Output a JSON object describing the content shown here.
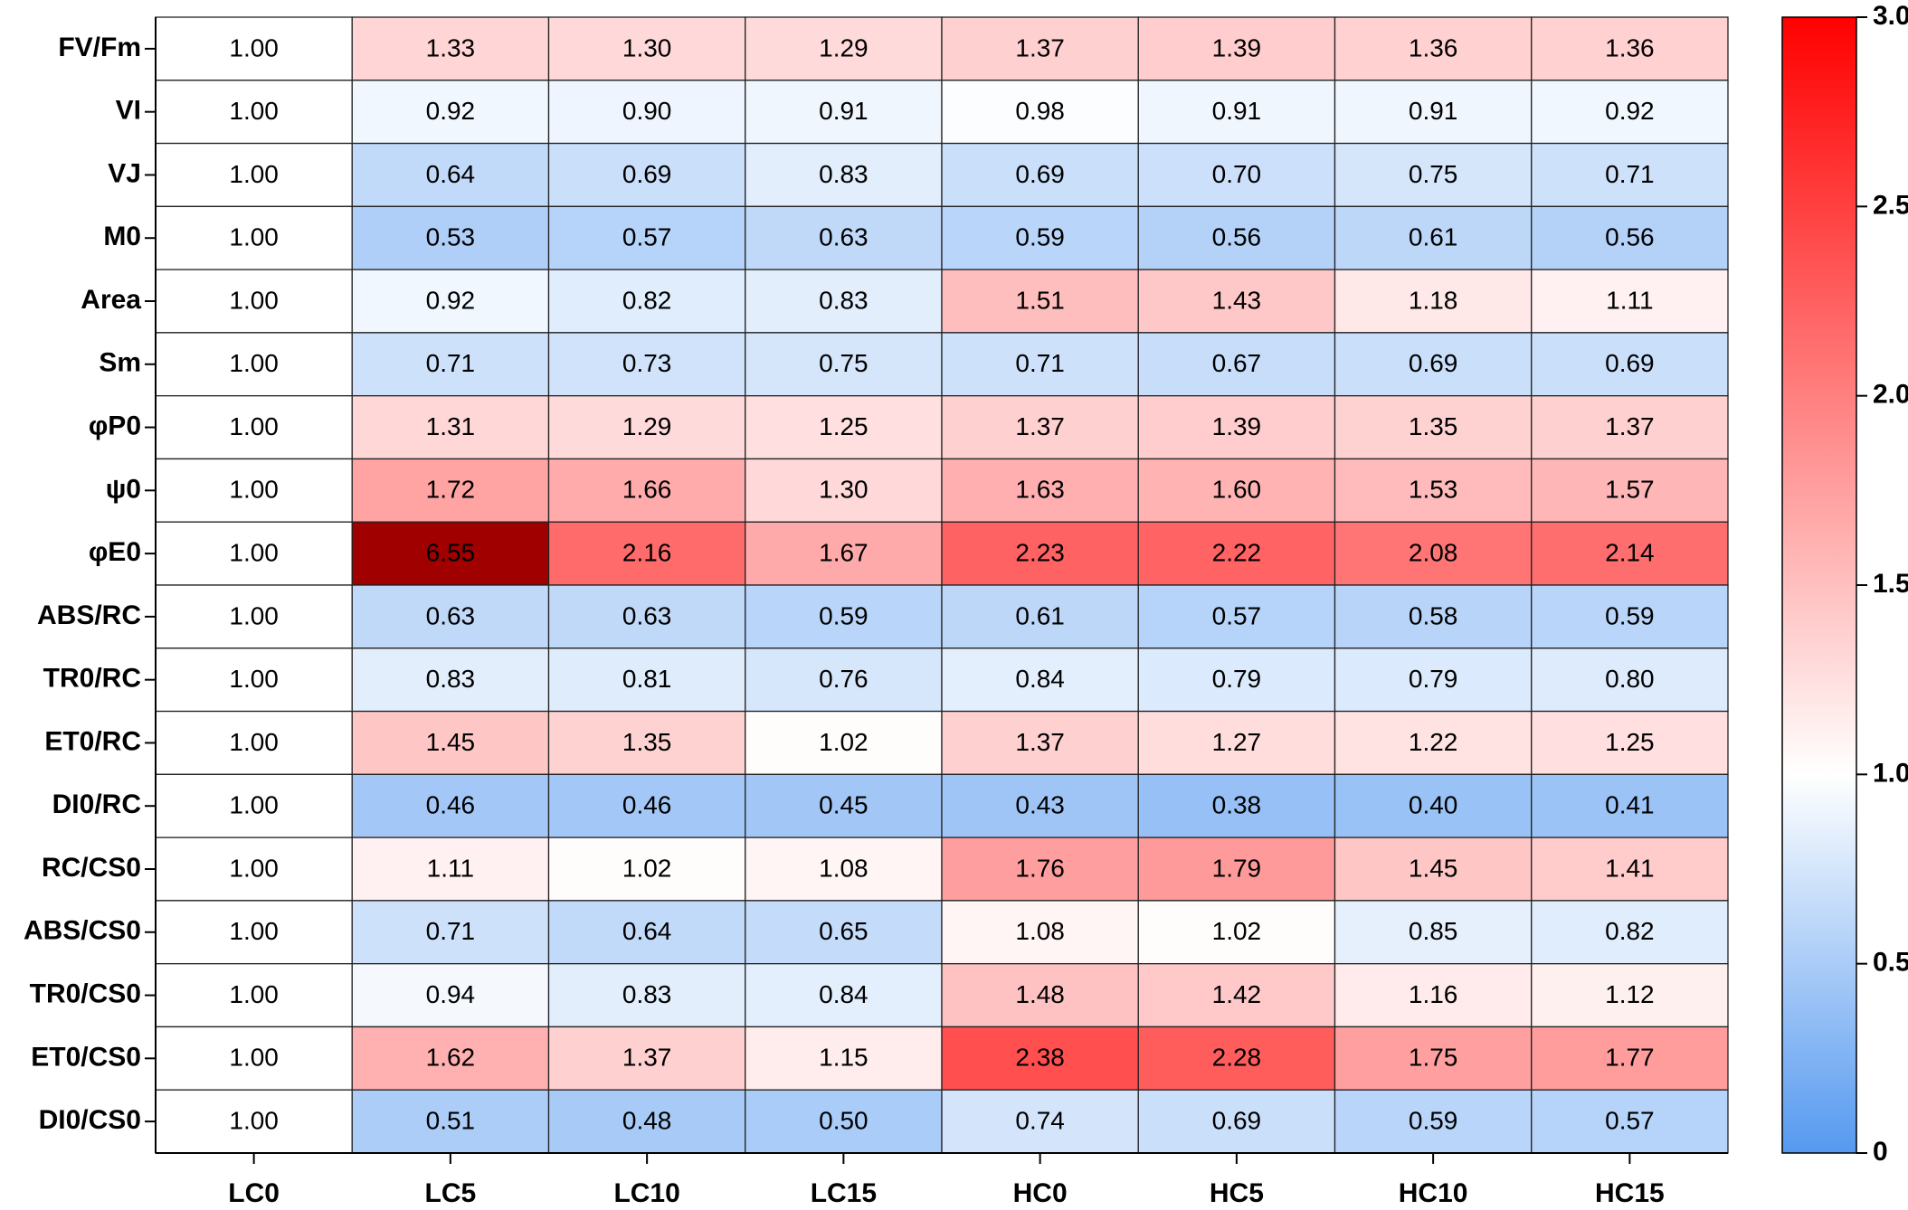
{
  "chart_data": {
    "type": "heatmap",
    "columns": [
      "LC0",
      "LC5",
      "LC10",
      "LC15",
      "HC0",
      "HC5",
      "HC10",
      "HC15"
    ],
    "rows": [
      "FV/Fm",
      "VI",
      "VJ",
      "M0",
      "Area",
      "Sm",
      "φP0",
      "ψ0",
      "φE0",
      "ABS/RC",
      "TR0/RC",
      "ET0/RC",
      "DI0/RC",
      "RC/CS0",
      "ABS/CS0",
      "TR0/CS0",
      "ET0/CS0",
      "DI0/CS0"
    ],
    "values": [
      [
        1.0,
        1.33,
        1.3,
        1.29,
        1.37,
        1.39,
        1.36,
        1.36
      ],
      [
        1.0,
        0.92,
        0.9,
        0.91,
        0.98,
        0.91,
        0.91,
        0.92
      ],
      [
        1.0,
        0.64,
        0.69,
        0.83,
        0.69,
        0.7,
        0.75,
        0.71
      ],
      [
        1.0,
        0.53,
        0.57,
        0.63,
        0.59,
        0.56,
        0.61,
        0.56
      ],
      [
        1.0,
        0.92,
        0.82,
        0.83,
        1.51,
        1.43,
        1.18,
        1.11
      ],
      [
        1.0,
        0.71,
        0.73,
        0.75,
        0.71,
        0.67,
        0.69,
        0.69
      ],
      [
        1.0,
        1.31,
        1.29,
        1.25,
        1.37,
        1.39,
        1.35,
        1.37
      ],
      [
        1.0,
        1.72,
        1.66,
        1.3,
        1.63,
        1.6,
        1.53,
        1.57
      ],
      [
        1.0,
        6.55,
        2.16,
        1.67,
        2.23,
        2.22,
        2.08,
        2.14
      ],
      [
        1.0,
        0.63,
        0.63,
        0.59,
        0.61,
        0.57,
        0.58,
        0.59
      ],
      [
        1.0,
        0.83,
        0.81,
        0.76,
        0.84,
        0.79,
        0.79,
        0.8
      ],
      [
        1.0,
        1.45,
        1.35,
        1.02,
        1.37,
        1.27,
        1.22,
        1.25
      ],
      [
        1.0,
        0.46,
        0.46,
        0.45,
        0.43,
        0.38,
        0.4,
        0.41
      ],
      [
        1.0,
        1.11,
        1.02,
        1.08,
        1.76,
        1.79,
        1.45,
        1.41
      ],
      [
        1.0,
        0.71,
        0.64,
        0.65,
        1.08,
        1.02,
        0.85,
        0.82
      ],
      [
        1.0,
        0.94,
        0.83,
        0.84,
        1.48,
        1.42,
        1.16,
        1.12
      ],
      [
        1.0,
        1.62,
        1.37,
        1.15,
        2.38,
        2.28,
        1.75,
        1.77
      ],
      [
        1.0,
        0.51,
        0.48,
        0.5,
        0.74,
        0.69,
        0.59,
        0.57
      ]
    ],
    "value_labels": [
      [
        "1.00",
        "1.33",
        "1.30",
        "1.29",
        "1.37",
        "1.39",
        "1.36",
        "1.36"
      ],
      [
        "1.00",
        "0.92",
        "0.90",
        "0.91",
        "0.98",
        "0.91",
        "0.91",
        "0.92"
      ],
      [
        "1.00",
        "0.64",
        "0.69",
        "0.83",
        "0.69",
        "0.70",
        "0.75",
        "0.71"
      ],
      [
        "1.00",
        "0.53",
        "0.57",
        "0.63",
        "0.59",
        "0.56",
        "0.61",
        "0.56"
      ],
      [
        "1.00",
        "0.92",
        "0.82",
        "0.83",
        "1.51",
        "1.43",
        "1.18",
        "1.11"
      ],
      [
        "1.00",
        "0.71",
        "0.73",
        "0.75",
        "0.71",
        "0.67",
        "0.69",
        "0.69"
      ],
      [
        "1.00",
        "1.31",
        "1.29",
        "1.25",
        "1.37",
        "1.39",
        "1.35",
        "1.37"
      ],
      [
        "1.00",
        "1.72",
        "1.66",
        "1.30",
        "1.63",
        "1.60",
        "1.53",
        "1.57"
      ],
      [
        "1.00",
        "6.55",
        "2.16",
        "1.67",
        "2.23",
        "2.22",
        "2.08",
        "2.14"
      ],
      [
        "1.00",
        "0.63",
        "0.63",
        "0.59",
        "0.61",
        "0.57",
        "0.58",
        "0.59"
      ],
      [
        "1.00",
        "0.83",
        "0.81",
        "0.76",
        "0.84",
        "0.79",
        "0.79",
        "0.80"
      ],
      [
        "1.00",
        "1.45",
        "1.35",
        "1.02",
        "1.37",
        "1.27",
        "1.22",
        "1.25"
      ],
      [
        "1.00",
        "0.46",
        "0.46",
        "0.45",
        "0.43",
        "0.38",
        "0.40",
        "0.41"
      ],
      [
        "1.00",
        "1.11",
        "1.02",
        "1.08",
        "1.76",
        "1.79",
        "1.45",
        "1.41"
      ],
      [
        "1.00",
        "0.71",
        "0.64",
        "0.65",
        "1.08",
        "1.02",
        "0.85",
        "0.82"
      ],
      [
        "1.00",
        "0.94",
        "0.83",
        "0.84",
        "1.48",
        "1.42",
        "1.16",
        "1.12"
      ],
      [
        "1.00",
        "1.62",
        "1.37",
        "1.15",
        "2.38",
        "2.28",
        "1.75",
        "1.77"
      ],
      [
        "1.00",
        "0.51",
        "0.48",
        "0.50",
        "0.74",
        "0.69",
        "0.59",
        "0.57"
      ]
    ],
    "zlim": [
      0,
      3
    ],
    "zticks": [
      0,
      0.5,
      {
        "value": 1,
        "label": "1.0"
      },
      1.5,
      {
        "value": 2,
        "label": "2.0"
      },
      2.5,
      {
        "value": 3,
        "label": "3.0"
      }
    ],
    "colormap": {
      "low": "#5599f0",
      "mid": "#ffffff",
      "high": "#ff0000",
      "over": "#a00000"
    },
    "center": 1
  }
}
